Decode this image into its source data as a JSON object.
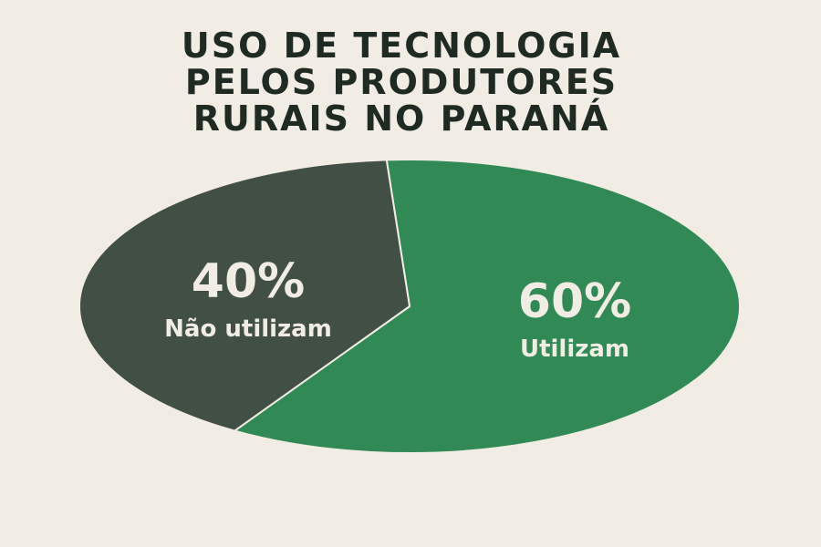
{
  "chart_data": {
    "type": "pie",
    "title_lines": [
      "USO DE TECNOLOGIA",
      "PELOS PRODUTORES",
      "RURAIS NO PARANÁ"
    ],
    "slices": [
      {
        "label": "Não utilizam",
        "value": 40,
        "value_label": "40%",
        "color": "#414f45"
      },
      {
        "label": "Utilizam",
        "value": 60,
        "value_label": "60%",
        "color": "#318a55"
      }
    ],
    "legend": "none"
  }
}
